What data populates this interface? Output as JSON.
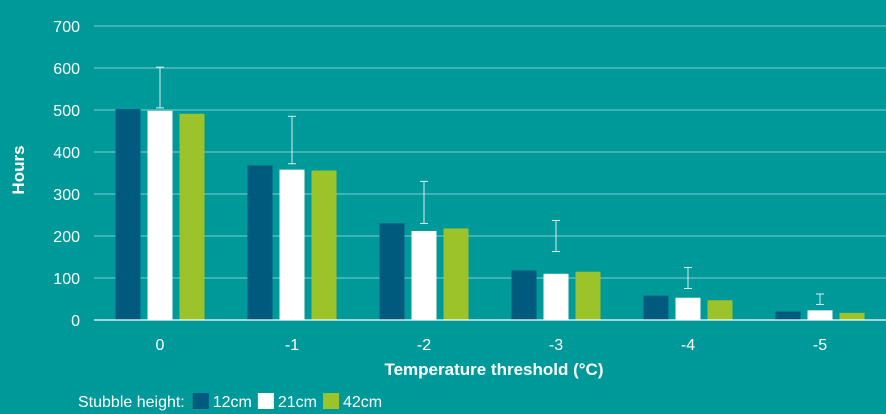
{
  "chart_data": {
    "type": "bar",
    "title": "",
    "xlabel": "Temperature threshold (°C)",
    "ylabel": "Hours",
    "ylim": [
      0,
      700
    ],
    "yticks": [
      "0",
      "100",
      "200",
      "300",
      "400",
      "500",
      "600",
      "700"
    ],
    "categories": [
      "0",
      "-1",
      "-2",
      "-3",
      "-4",
      "-5"
    ],
    "series": [
      {
        "name": "12cm",
        "color": "#005a7d",
        "values": [
          502,
          368,
          230,
          118,
          58,
          20
        ]
      },
      {
        "name": "21cm",
        "color": "#ffffff",
        "values": [
          498,
          358,
          212,
          110,
          53,
          23
        ]
      },
      {
        "name": "42cm",
        "color": "#9cc42a",
        "values": [
          491,
          356,
          218,
          115,
          47,
          17
        ]
      }
    ],
    "error_bars": {
      "series": "21cm",
      "low": [
        505,
        372,
        230,
        163,
        75,
        37
      ],
      "high": [
        602,
        485,
        330,
        237,
        125,
        62
      ]
    },
    "grid": true,
    "legend": {
      "title": "Stubble height:",
      "position": "bottom-left"
    }
  }
}
